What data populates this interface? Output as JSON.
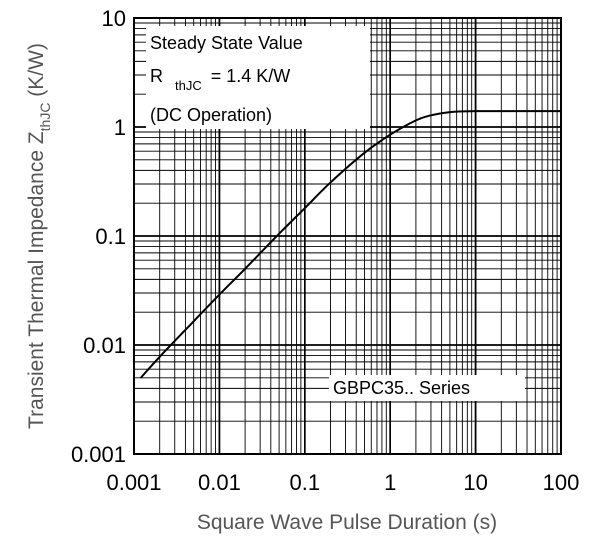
{
  "chart_data": {
    "type": "line",
    "title": "",
    "x_scale": "log",
    "y_scale": "log",
    "xlim": [
      0.001,
      100
    ],
    "ylim": [
      0.001,
      10
    ],
    "grid": true,
    "xlabel": "Square Wave Pulse Duration (s)",
    "ylabel_main": "Transient Thermal Impedance Z",
    "ylabel_sub": "thJC",
    "ylabel_unit": " (K/W)",
    "x_ticks": [
      "0.001",
      "0.01",
      "0.1",
      "1",
      "10",
      "100"
    ],
    "y_ticks": [
      "0.001",
      "0.01",
      "0.1",
      "1",
      "10"
    ],
    "annotations": {
      "line1": "Steady State Value",
      "line2_prefix": "R",
      "line2_sub": "thJC",
      "line2_suffix": " = 1.4 K/W",
      "line3": "(DC Operation)",
      "series_label": "GBPC35.. Series"
    },
    "series": [
      {
        "x": [
          0.0012,
          0.002,
          0.005,
          0.01,
          0.02,
          0.05,
          0.1,
          0.2,
          0.5,
          1,
          2,
          3,
          5,
          7,
          10,
          20,
          50,
          100
        ],
        "y": [
          0.005,
          0.0078,
          0.0165,
          0.029,
          0.05,
          0.105,
          0.18,
          0.31,
          0.58,
          0.85,
          1.15,
          1.28,
          1.37,
          1.39,
          1.4,
          1.4,
          1.4,
          1.4
        ]
      }
    ],
    "line_color": "#000000"
  }
}
